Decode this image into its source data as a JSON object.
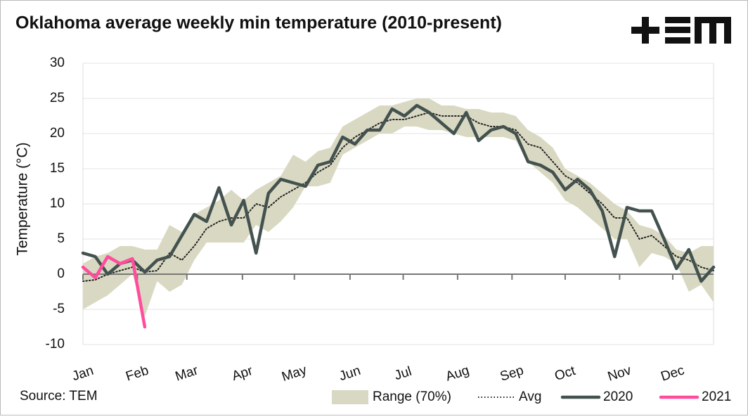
{
  "chart_data": {
    "type": "line",
    "title": "Oklahoma average weekly min temperature (2010-present)",
    "source": "Source: TEM",
    "y_label": "Temperature (°C)",
    "x": [
      1,
      2,
      3,
      4,
      5,
      6,
      7,
      8,
      9,
      10,
      11,
      12,
      13,
      14,
      15,
      16,
      17,
      18,
      19,
      20,
      21,
      22,
      23,
      24,
      25,
      26,
      27,
      28,
      29,
      30,
      31,
      32,
      33,
      34,
      35,
      36,
      37,
      38,
      39,
      40,
      41,
      42,
      43,
      44,
      45,
      46,
      47,
      48,
      49,
      50,
      51,
      52
    ],
    "xlim": [
      1,
      52
    ],
    "xticks": [
      {
        "value": 1,
        "label": "Jan"
      },
      {
        "value": 5.4,
        "label": "Feb"
      },
      {
        "value": 9.4,
        "label": "Mar"
      },
      {
        "value": 13.9,
        "label": "Apr"
      },
      {
        "value": 18.1,
        "label": "May"
      },
      {
        "value": 22.6,
        "label": "Jun"
      },
      {
        "value": 26.9,
        "label": "Jul"
      },
      {
        "value": 31.3,
        "label": "Aug"
      },
      {
        "value": 35.7,
        "label": "Sep"
      },
      {
        "value": 40,
        "label": "Oct"
      },
      {
        "value": 44.4,
        "label": "Nov"
      },
      {
        "value": 48.7,
        "label": "Dec"
      }
    ],
    "ylim": [
      -10,
      30
    ],
    "yticks": [
      -10,
      -5,
      0,
      5,
      10,
      15,
      20,
      25,
      30
    ],
    "grid": true,
    "series": [
      {
        "name": "Range (70%)",
        "color": "#d9d9c3",
        "kind": "band",
        "low": [
          -5,
          -4,
          -3,
          -1.5,
          0,
          -6,
          -1,
          -2.5,
          -1.5,
          2,
          4.5,
          4.5,
          4.5,
          4.5,
          7,
          6,
          7.5,
          9.5,
          12.5,
          12.5,
          13,
          17,
          18,
          19,
          20,
          20,
          21,
          21,
          20.5,
          20.5,
          20,
          19.5,
          19.5,
          19.5,
          19.5,
          19,
          16,
          14.5,
          13,
          10.5,
          9.5,
          8,
          6.5,
          5,
          5,
          1,
          3,
          2.5,
          1.5,
          -2.5,
          -1.5,
          -4
        ],
        "high": [
          1.5,
          2.5,
          3,
          4,
          4,
          3.5,
          3.5,
          7,
          6,
          8.5,
          9.5,
          10.5,
          12,
          10.5,
          12,
          13,
          14,
          17,
          16,
          17.5,
          18,
          21,
          22,
          23,
          24,
          24,
          24.5,
          25,
          25,
          24,
          24,
          23.5,
          23.5,
          23,
          23,
          22.5,
          20.5,
          19.5,
          18,
          15,
          14,
          13,
          11.5,
          10,
          9,
          7,
          6.5,
          5.5,
          3.5,
          3,
          4,
          4
        ]
      },
      {
        "name": "Avg",
        "color": "#222222",
        "kind": "dotted",
        "values": [
          -1,
          -0.8,
          0,
          0.5,
          1,
          0.3,
          0.5,
          3,
          2,
          4,
          6.5,
          7.5,
          8,
          8,
          10,
          9.5,
          11,
          12,
          13,
          14.5,
          15.5,
          18,
          19.5,
          20.5,
          21.5,
          22,
          22,
          22.5,
          23,
          22.5,
          22.5,
          22.5,
          21.5,
          21,
          21,
          20.5,
          18.5,
          18,
          16,
          14,
          13,
          11.5,
          10,
          8,
          8,
          5,
          5.5,
          4,
          2.5,
          2,
          1,
          0.5
        ]
      },
      {
        "name": "2020",
        "color": "#44524f",
        "kind": "solid",
        "values": [
          3,
          2.5,
          0,
          1.5,
          2,
          0.3,
          2,
          2.5,
          5.5,
          8.5,
          7.5,
          12.3,
          7,
          10.5,
          3,
          11.5,
          13.5,
          13,
          12.5,
          15.5,
          16,
          19.5,
          18.5,
          20.5,
          20.5,
          23.5,
          22.5,
          24,
          23,
          21.5,
          20,
          23,
          19,
          20.5,
          21,
          20,
          16,
          15.5,
          14.5,
          12,
          13.5,
          12,
          9,
          2.5,
          9.5,
          9,
          9,
          5,
          0.8,
          3.5,
          -1,
          1
        ]
      },
      {
        "name": "2021",
        "color": "#ff4c9c",
        "kind": "solid",
        "values": [
          1,
          -0.5,
          2.5,
          1.5,
          2.2,
          -7.5,
          null,
          null,
          null,
          null,
          null,
          null,
          null,
          null,
          null,
          null,
          null,
          null,
          null,
          null,
          null,
          null,
          null,
          null,
          null,
          null,
          null,
          null,
          null,
          null,
          null,
          null,
          null,
          null,
          null,
          null,
          null,
          null,
          null,
          null,
          null,
          null,
          null,
          null,
          null,
          null,
          null,
          null,
          null,
          null,
          null,
          null
        ]
      }
    ]
  }
}
